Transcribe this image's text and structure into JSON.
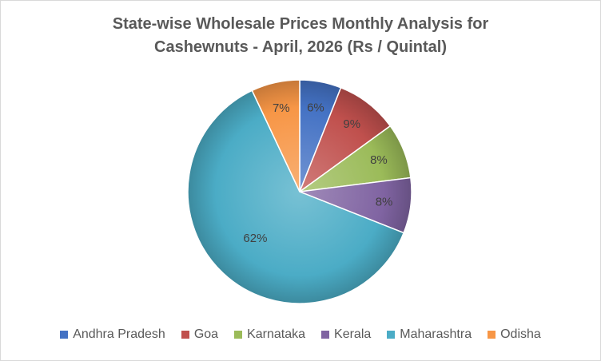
{
  "chart_data": {
    "type": "pie",
    "title": "State-wise Wholesale Prices Monthly Analysis for Cashewnuts - April, 2026 (Rs / Quintal)",
    "title_lines": [
      "State-wise Wholesale Prices Monthly Analysis for",
      "Cashewnuts - April, 2026 (Rs / Quintal)"
    ],
    "categories": [
      "Andhra Pradesh",
      "Goa",
      "Karnataka",
      "Kerala",
      "Maharashtra",
      "Odisha"
    ],
    "values": [
      6,
      9,
      8,
      8,
      62,
      7
    ],
    "labels": [
      "6%",
      "9%",
      "8%",
      "8%",
      "62%",
      "7%"
    ],
    "colors": [
      "#4472C4",
      "#C0504D",
      "#9BBB59",
      "#8064A2",
      "#4BACC6",
      "#F79646"
    ],
    "legend_position": "bottom"
  }
}
